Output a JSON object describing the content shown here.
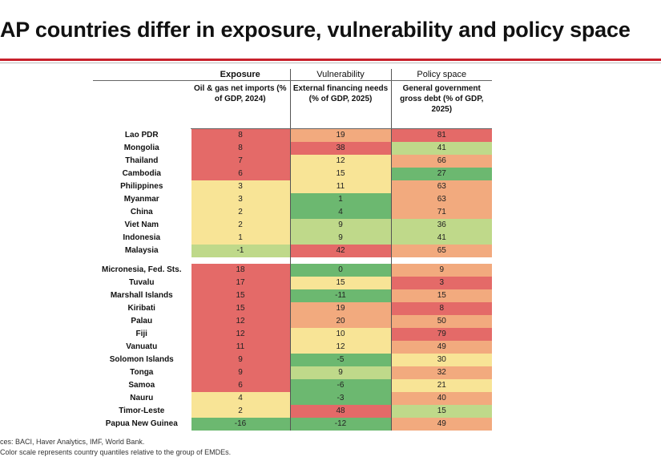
{
  "title": "AP countries differ in exposure, vulnerability and policy space",
  "columns": {
    "exposure": {
      "group": "Exposure",
      "sub": "Oil & gas net imports (% of GDP, 2024)"
    },
    "vulnerability": {
      "group": "Vulnerability",
      "sub": "External financing needs (% of GDP, 2025)"
    },
    "policy": {
      "group": "Policy space",
      "sub": "General government gross debt (% of GDP, 2025)"
    }
  },
  "colors": {
    "red": "#e46a68",
    "orange": "#f2aa7e",
    "yellow": "#f8e496",
    "lightgreen": "#bfd98a",
    "green": "#6cb870",
    "gap": "#ffffff"
  },
  "chart_data": {
    "type": "table",
    "title": "AP countries differ in exposure, vulnerability and policy space",
    "group_headers": [
      "Exposure",
      "Vulnerability",
      "Policy space"
    ],
    "column_labels": [
      "Oil & gas net imports (% of GDP, 2024)",
      "External financing needs (% of GDP, 2025)",
      "General government gross debt (% of GDP, 2025)"
    ],
    "groups": [
      {
        "rows": [
          {
            "country": "Lao PDR",
            "exposure": "8",
            "vulnerability": "19",
            "policy": "81",
            "colors": [
              "red",
              "orange",
              "red"
            ]
          },
          {
            "country": "Mongolia",
            "exposure": "8",
            "vulnerability": "38",
            "policy": "41",
            "colors": [
              "red",
              "red",
              "lightgreen"
            ]
          },
          {
            "country": "Thailand",
            "exposure": "7",
            "vulnerability": "12",
            "policy": "66",
            "colors": [
              "red",
              "yellow",
              "orange"
            ]
          },
          {
            "country": "Cambodia",
            "exposure": "6",
            "vulnerability": "15",
            "policy": "27",
            "colors": [
              "red",
              "yellow",
              "green"
            ]
          },
          {
            "country": "Philippines",
            "exposure": "3",
            "vulnerability": "11",
            "policy": "63",
            "colors": [
              "yellow",
              "yellow",
              "orange"
            ]
          },
          {
            "country": "Myanmar",
            "exposure": "3",
            "vulnerability": "1",
            "policy": "63",
            "colors": [
              "yellow",
              "green",
              "orange"
            ]
          },
          {
            "country": "China",
            "exposure": "2",
            "vulnerability": "4",
            "policy": "71",
            "colors": [
              "yellow",
              "green",
              "orange"
            ]
          },
          {
            "country": "Viet Nam",
            "exposure": "2",
            "vulnerability": "9",
            "policy": "36",
            "colors": [
              "yellow",
              "lightgreen",
              "lightgreen"
            ]
          },
          {
            "country": "Indonesia",
            "exposure": "1",
            "vulnerability": "9",
            "policy": "41",
            "colors": [
              "yellow",
              "lightgreen",
              "lightgreen"
            ]
          },
          {
            "country": "Malaysia",
            "exposure": "-1",
            "vulnerability": "42",
            "policy": "65",
            "colors": [
              "lightgreen",
              "red",
              "orange"
            ]
          }
        ]
      },
      {
        "rows": [
          {
            "country": "Micronesia, Fed. Sts.",
            "exposure": "18",
            "vulnerability": "0",
            "policy": "9",
            "colors": [
              "red",
              "green",
              "orange"
            ]
          },
          {
            "country": "Tuvalu",
            "exposure": "17",
            "vulnerability": "15",
            "policy": "3",
            "colors": [
              "red",
              "yellow",
              "red"
            ]
          },
          {
            "country": "Marshall Islands",
            "exposure": "15",
            "vulnerability": "-11",
            "policy": "15",
            "colors": [
              "red",
              "green",
              "orange"
            ]
          },
          {
            "country": "Kiribati",
            "exposure": "15",
            "vulnerability": "19",
            "policy": "8",
            "colors": [
              "red",
              "orange",
              "red"
            ]
          },
          {
            "country": "Palau",
            "exposure": "12",
            "vulnerability": "20",
            "policy": "50",
            "colors": [
              "red",
              "orange",
              "orange"
            ]
          },
          {
            "country": "Fiji",
            "exposure": "12",
            "vulnerability": "10",
            "policy": "79",
            "colors": [
              "red",
              "yellow",
              "red"
            ]
          },
          {
            "country": "Vanuatu",
            "exposure": "11",
            "vulnerability": "12",
            "policy": "49",
            "colors": [
              "red",
              "yellow",
              "orange"
            ]
          },
          {
            "country": "Solomon Islands",
            "exposure": "9",
            "vulnerability": "-5",
            "policy": "30",
            "colors": [
              "red",
              "green",
              "yellow"
            ]
          },
          {
            "country": "Tonga",
            "exposure": "9",
            "vulnerability": "9",
            "policy": "32",
            "colors": [
              "red",
              "lightgreen",
              "orange"
            ]
          },
          {
            "country": "Samoa",
            "exposure": "6",
            "vulnerability": "-6",
            "policy": "21",
            "colors": [
              "red",
              "green",
              "yellow"
            ]
          },
          {
            "country": "Nauru",
            "exposure": "4",
            "vulnerability": "-3",
            "policy": "40",
            "colors": [
              "yellow",
              "green",
              "orange"
            ]
          },
          {
            "country": "Timor-Leste",
            "exposure": "2",
            "vulnerability": "48",
            "policy": "15",
            "colors": [
              "yellow",
              "red",
              "lightgreen"
            ]
          },
          {
            "country": "Papua New Guinea",
            "exposure": "-16",
            "vulnerability": "-12",
            "policy": "49",
            "colors": [
              "green",
              "green",
              "orange"
            ]
          }
        ]
      }
    ]
  },
  "notes": {
    "source": "ces: BACI, Haver Analytics, IMF, World Bank.",
    "color_note": "Color scale represents country quantiles relative to the group of EMDEs."
  }
}
